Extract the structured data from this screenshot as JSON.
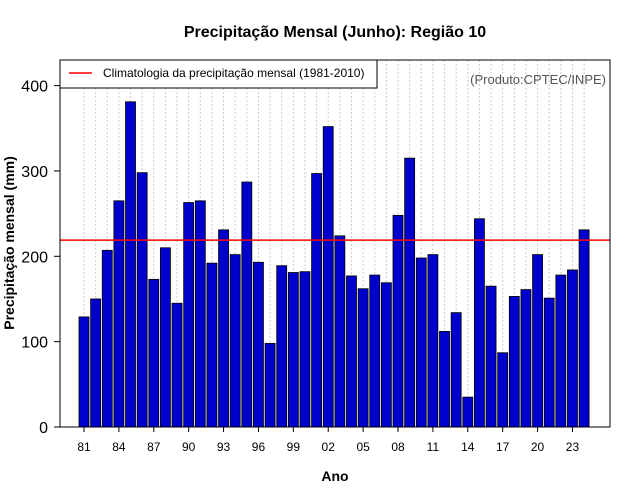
{
  "chart_data": {
    "type": "bar",
    "title": "Precipitação Mensal (Junho): Região 10",
    "xlabel": "Ano",
    "ylabel": "Precipitação mensal (mm)",
    "ylim": [
      0,
      430
    ],
    "yticks": [
      0,
      100,
      200,
      300,
      400
    ],
    "xtick_labels": [
      "81",
      "84",
      "87",
      "90",
      "93",
      "96",
      "99",
      "02",
      "05",
      "08",
      "11",
      "14",
      "17",
      "20",
      "23"
    ],
    "xtick_start_index": 0,
    "xtick_step": 3,
    "categories": [
      "1981",
      "1982",
      "1983",
      "1984",
      "1985",
      "1986",
      "1987",
      "1988",
      "1989",
      "1990",
      "1991",
      "1992",
      "1993",
      "1994",
      "1995",
      "1996",
      "1997",
      "1998",
      "1999",
      "2000",
      "2001",
      "2002",
      "2003",
      "2004",
      "2005",
      "2006",
      "2007",
      "2008",
      "2009",
      "2010",
      "2011",
      "2012",
      "2013",
      "2014",
      "2015",
      "2016",
      "2017",
      "2018",
      "2019",
      "2020",
      "2021",
      "2022",
      "2023",
      "2024"
    ],
    "values": [
      129,
      150,
      207,
      265,
      381,
      298,
      173,
      210,
      145,
      263,
      265,
      192,
      231,
      202,
      287,
      193,
      98,
      189,
      181,
      182,
      297,
      352,
      224,
      177,
      162,
      178,
      169,
      248,
      315,
      198,
      202,
      112,
      134,
      35,
      244,
      165,
      87,
      153,
      161,
      202,
      151,
      178,
      184,
      231
    ],
    "bar_color": "#0000cc",
    "climatology": {
      "value": 219,
      "label": "Climatologia da precipitação mensal (1981-2010)",
      "color": "#ff0000"
    },
    "legend_position": "top-left",
    "credit": "(Produto:CPTEC/INPE)",
    "grid": "vertical-dotted"
  }
}
